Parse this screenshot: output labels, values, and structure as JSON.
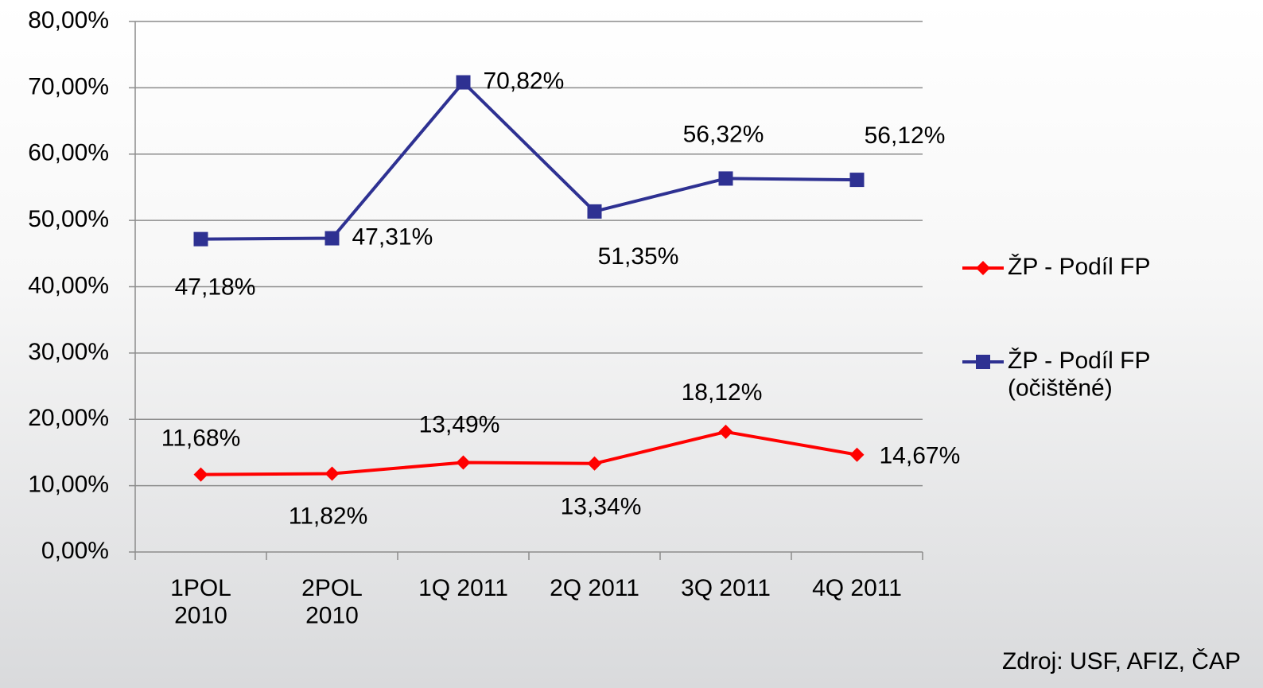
{
  "chart_data": {
    "type": "line",
    "categories": [
      "1POL\n2010",
      "2POL\n2010",
      "1Q 2011",
      "2Q 2011",
      "3Q 2011",
      "4Q 2011"
    ],
    "series": [
      {
        "name": "ŽP - Podíl FP",
        "color": "#ff0000",
        "marker": "diamond",
        "values": [
          11.68,
          11.82,
          13.49,
          13.34,
          18.12,
          14.67
        ],
        "value_labels": [
          "11,68%",
          "11,82%",
          "13,49%",
          "13,34%",
          "18,12%",
          "14,67%"
        ]
      },
      {
        "name": "ŽP - Podíl FP\n(očištěné)",
        "color": "#2e3192",
        "marker": "square",
        "values": [
          47.18,
          47.31,
          70.82,
          51.35,
          56.32,
          56.12
        ],
        "value_labels": [
          "47,18%",
          "47,31%",
          "70,82%",
          "51,35%",
          "56,32%",
          "56,12%"
        ]
      }
    ],
    "ylim": [
      0,
      80
    ],
    "yticks": [
      {
        "value": 0,
        "label": "0,00%"
      },
      {
        "value": 10,
        "label": "10,00%"
      },
      {
        "value": 20,
        "label": "20,00%"
      },
      {
        "value": 30,
        "label": "30,00%"
      },
      {
        "value": 40,
        "label": "40,00%"
      },
      {
        "value": 50,
        "label": "50,00%"
      },
      {
        "value": 60,
        "label": "60,00%"
      },
      {
        "value": 70,
        "label": "70,00%"
      },
      {
        "value": 80,
        "label": "80,00%"
      }
    ],
    "grid": true,
    "legend": "right",
    "source": "Zdroj: USF, AFIZ, ČAP"
  }
}
